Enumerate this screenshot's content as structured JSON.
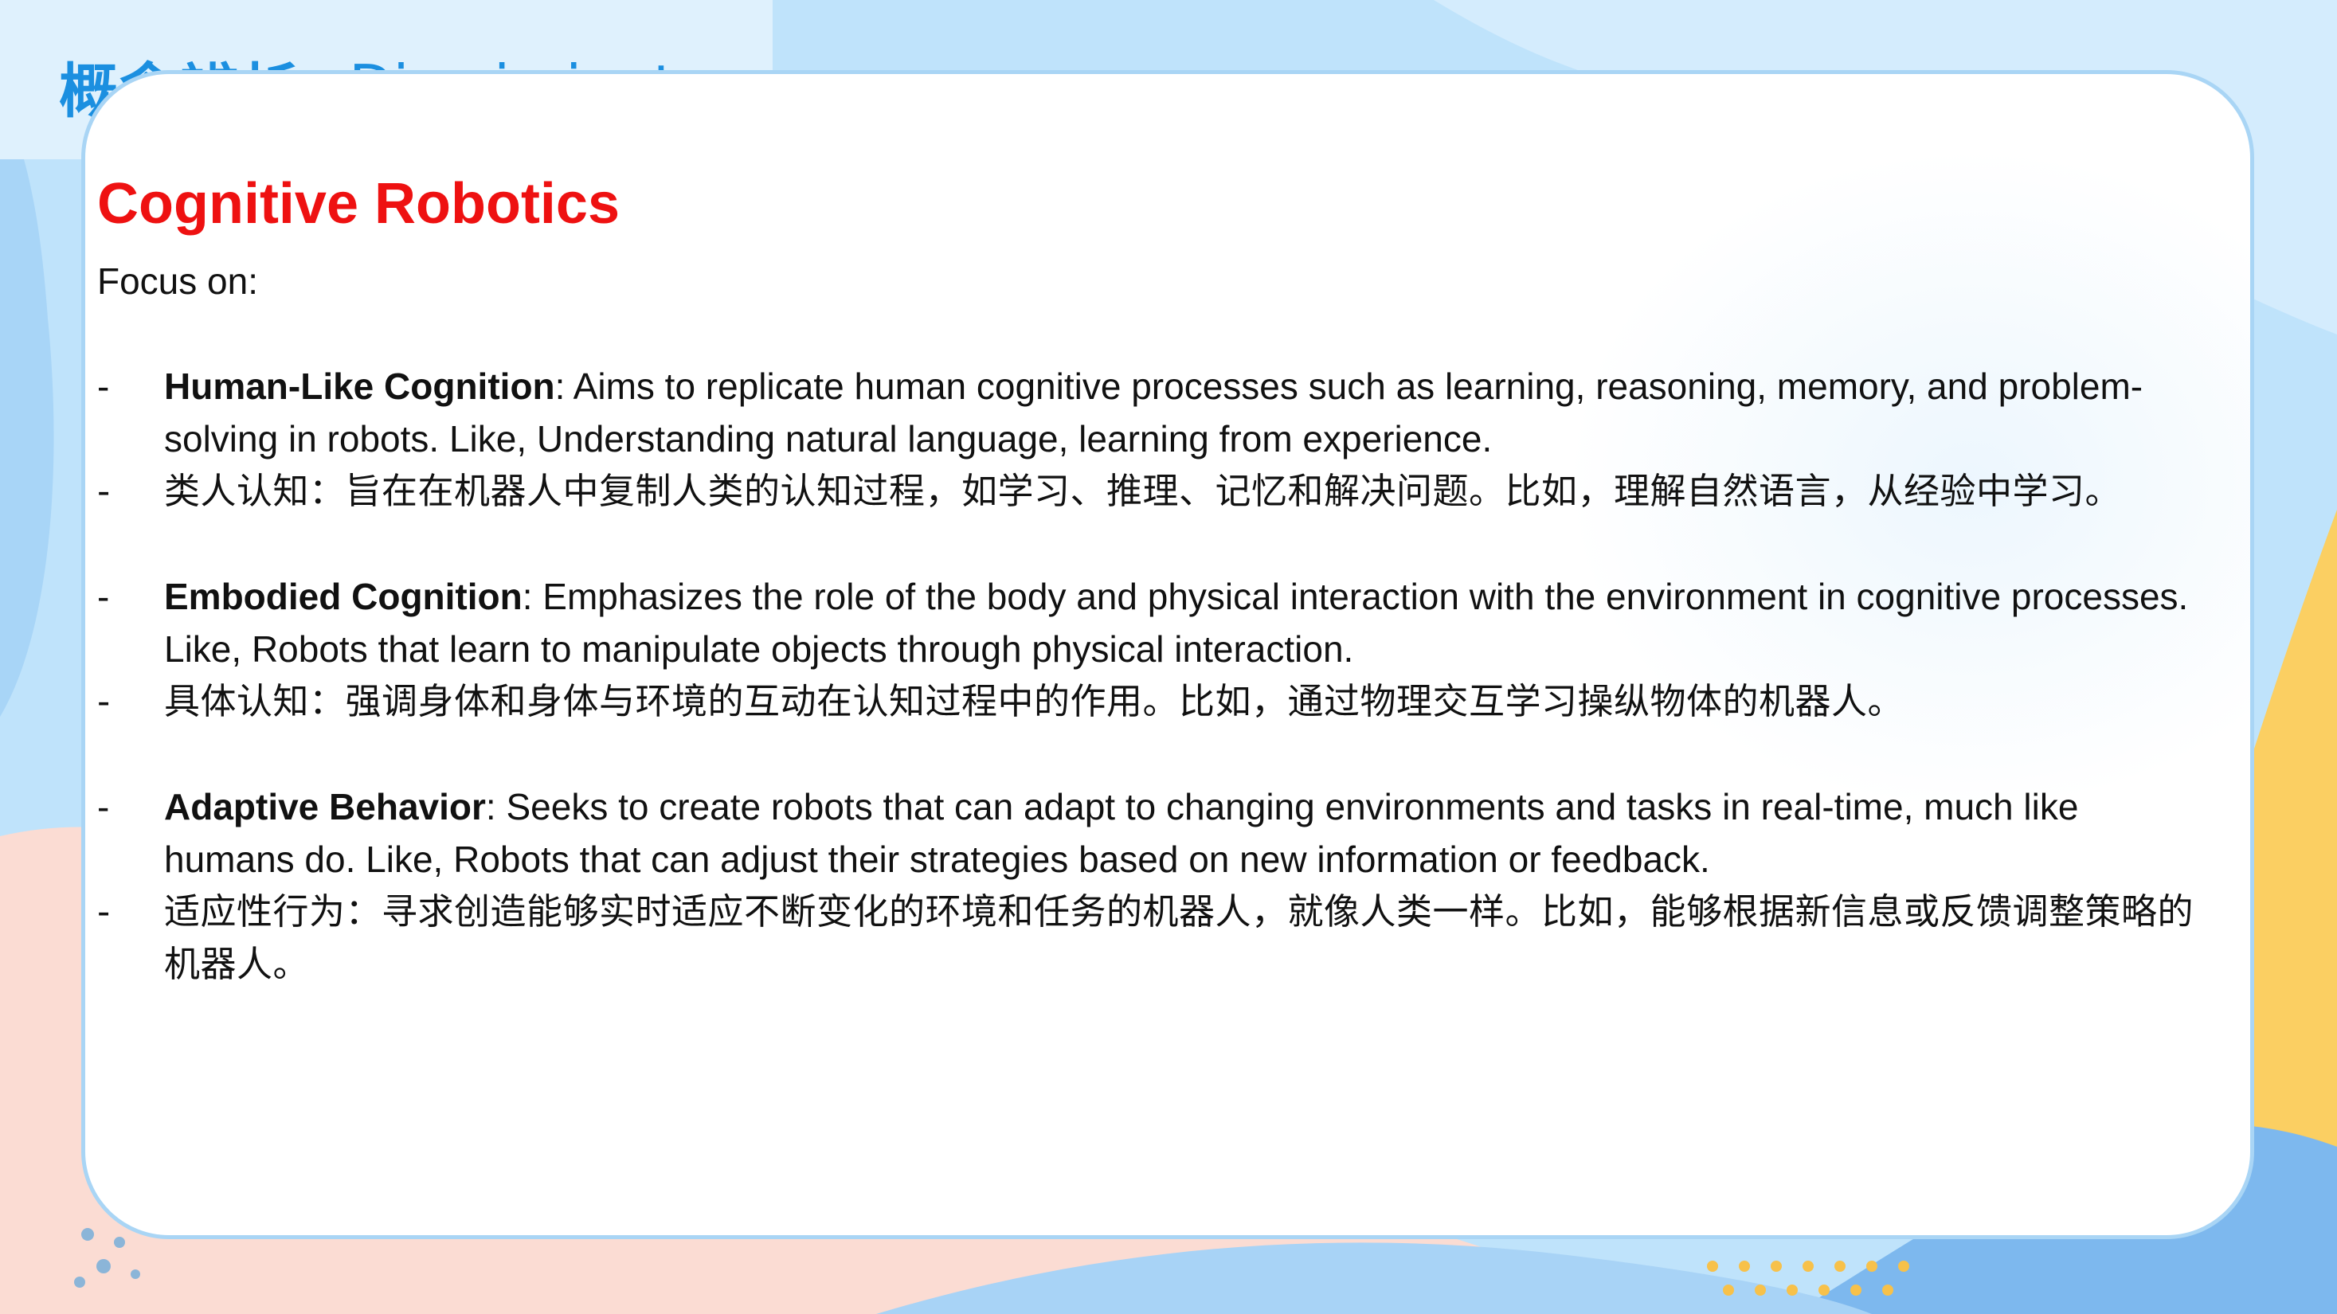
{
  "header": {
    "title_zh": "概念辨析",
    "title_en": "Discriminate"
  },
  "section": {
    "title": "Cognitive Robotics",
    "focus_label": "Focus on:"
  },
  "items": [
    {
      "bullet": "-",
      "term": "Human-Like Cognition",
      "text": ": Aims to replicate human cognitive processes such as learning, reasoning, memory, and problem-solving in robots. Like, Understanding natural language, learning from experience.",
      "zh_bullet": "-",
      "zh": "类人认知：旨在在机器人中复制人类的认知过程，如学习、推理、记忆和解决问题。比如，理解自然语言，从经验中学习。"
    },
    {
      "bullet": "-",
      "term": "Embodied Cognition",
      "text": ": Emphasizes the role of the body and physical interaction with the environment in cognitive processes. Like, Robots that learn to manipulate objects through physical interaction.",
      "zh_bullet": "-",
      "zh": "具体认知：强调身体和身体与环境的互动在认知过程中的作用。比如，通过物理交互学习操纵物体的机器人。"
    },
    {
      "bullet": "-",
      "term": "Adaptive Behavior",
      "text": ": Seeks to create robots that can adapt to changing environments and tasks in real-time, much like humans do. Like, Robots that can adjust their strategies based on new information or feedback.",
      "zh_bullet": "-",
      "zh": "适应性行为：寻求创造能够实时适应不断变化的环境和任务的机器人，就像人类一样。比如，能够根据新信息或反馈调整策略的机器人。"
    }
  ],
  "colors": {
    "accent_blue": "#1b8fe0",
    "title_red": "#ee1111",
    "card_border": "#a9d5f5",
    "background_blue": "#bfe3fb",
    "background_peach": "#fbdcd3",
    "background_yellow": "#fbcf62"
  }
}
